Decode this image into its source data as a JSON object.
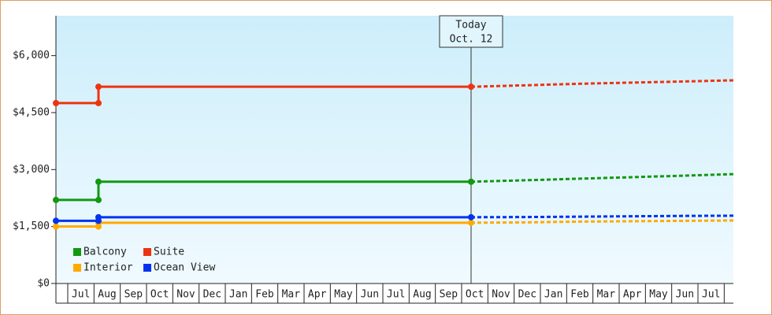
{
  "chart_data": {
    "type": "step-line",
    "annotation": {
      "title": "Today",
      "date": "Oct. 12",
      "x": 16.36
    },
    "categories": [
      "Jul",
      "Aug",
      "Sep",
      "Oct",
      "Nov",
      "Dec",
      "Jan",
      "Feb",
      "Mar",
      "Apr",
      "May",
      "Jun",
      "Jul",
      "Aug",
      "Sep",
      "Oct",
      "Nov",
      "Dec",
      "Jan",
      "Feb",
      "Mar",
      "Apr",
      "May",
      "Jun",
      "Jul"
    ],
    "xlim": [
      0.55,
      26.35
    ],
    "ylim": [
      0,
      7050
    ],
    "yticks": [
      {
        "value": 0,
        "label": "$0"
      },
      {
        "value": 1500,
        "label": "$1,500"
      },
      {
        "value": 3000,
        "label": "$3,000"
      },
      {
        "value": 4500,
        "label": "$4,500"
      },
      {
        "value": 6000,
        "label": "$6,000"
      }
    ],
    "legend": "bottom-left",
    "series": [
      {
        "name": "Balcony",
        "color": "#119911",
        "x": [
          0.55,
          2.17,
          2.17,
          16.36
        ],
        "values": [
          2200,
          2200,
          2680,
          2680
        ],
        "forecast_x": [
          16.36,
          18.5,
          20.5,
          22.5,
          24.5,
          26.35
        ],
        "forecast_values": [
          2680,
          2720,
          2760,
          2800,
          2840,
          2880
        ]
      },
      {
        "name": "Suite",
        "color": "#ee3311",
        "x": [
          0.55,
          2.17,
          2.17,
          16.36
        ],
        "values": [
          4750,
          4750,
          5180,
          5180
        ],
        "forecast_x": [
          16.36,
          18.5,
          20.5,
          22.5,
          24.5,
          26.35
        ],
        "forecast_values": [
          5180,
          5220,
          5260,
          5290,
          5320,
          5350
        ]
      },
      {
        "name": "Interior",
        "color": "#ffaa00",
        "x": [
          0.55,
          2.17,
          2.17,
          16.36
        ],
        "values": [
          1500,
          1500,
          1600,
          1600
        ],
        "forecast_x": [
          16.36,
          18.5,
          20.5,
          22.5,
          24.5,
          26.35
        ],
        "forecast_values": [
          1600,
          1610,
          1630,
          1640,
          1650,
          1660
        ]
      },
      {
        "name": "Ocean View",
        "color": "#0033ee",
        "x": [
          0.55,
          2.17,
          2.17,
          16.36
        ],
        "values": [
          1650,
          1650,
          1745,
          1745
        ],
        "forecast_x": [
          16.36,
          18.5,
          20.5,
          22.5,
          24.5,
          26.35
        ],
        "forecast_values": [
          1745,
          1750,
          1760,
          1770,
          1780,
          1785
        ]
      }
    ]
  }
}
